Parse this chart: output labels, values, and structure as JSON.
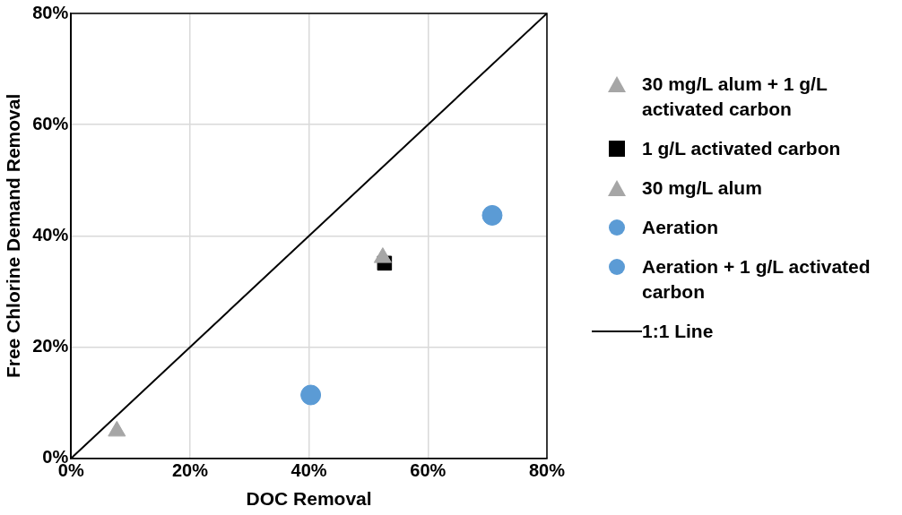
{
  "chart_data": {
    "type": "scatter",
    "xlabel": "DOC Removal",
    "ylabel": "Free Chlorine Demand Removal",
    "xlim": [
      0,
      80
    ],
    "ylim": [
      0,
      80
    ],
    "xticks": [
      {
        "value": 0,
        "label": "0%"
      },
      {
        "value": 20,
        "label": "20%"
      },
      {
        "value": 40,
        "label": "40%"
      },
      {
        "value": 60,
        "label": "60%"
      },
      {
        "value": 80,
        "label": "80%"
      }
    ],
    "yticks": [
      {
        "value": 0,
        "label": "0%"
      },
      {
        "value": 20,
        "label": "20%"
      },
      {
        "value": 40,
        "label": "40%"
      },
      {
        "value": 60,
        "label": "60%"
      },
      {
        "value": 80,
        "label": "80%"
      }
    ],
    "grid": true,
    "legend": "right",
    "series": [
      {
        "name": "30 mg/L alum + 1 g/L activated carbon",
        "color": "#a6a6a6",
        "marker": "triangle",
        "x": [
          52.4
        ],
        "values": [
          36.1
        ]
      },
      {
        "name": "1 g/L activated carbon",
        "color": "#000000",
        "marker": "square",
        "x": [
          52.7
        ],
        "values": [
          35.1
        ]
      },
      {
        "name": "30 mg/L alum",
        "color": "#a6a6a6",
        "marker": "triangle",
        "x": [
          7.7
        ],
        "values": [
          4.9
        ]
      },
      {
        "name": "Aeration",
        "color": "#5b9bd5",
        "marker": "circle",
        "x": [
          40.3
        ],
        "values": [
          11.4
        ]
      },
      {
        "name": "Aeration + 1 g/L activated carbon",
        "color": "#5b9bd5",
        "marker": "circle",
        "x": [
          70.8
        ],
        "values": [
          43.7
        ]
      },
      {
        "name": "1:1 Line",
        "type": "line",
        "color": "#000000",
        "marker": "none",
        "x": [
          0,
          80
        ],
        "values": [
          0,
          80
        ]
      }
    ]
  }
}
